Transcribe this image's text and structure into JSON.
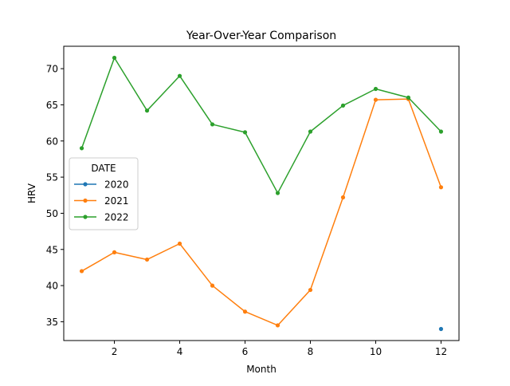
{
  "chart_data": {
    "type": "line",
    "title": "Year-Over-Year Comparison",
    "xlabel": "Month",
    "ylabel": "HRV",
    "xlim": [
      0.45,
      12.55
    ],
    "ylim": [
      32.4,
      73.1
    ],
    "xticks": [
      2,
      4,
      6,
      8,
      10,
      12
    ],
    "yticks": [
      35,
      40,
      45,
      50,
      55,
      60,
      65,
      70
    ],
    "grid": false,
    "legend": {
      "title": "DATE",
      "placement": "center-left"
    },
    "series": [
      {
        "name": "2020",
        "color": "#1f77b4",
        "x": [
          12
        ],
        "y": [
          34.0
        ]
      },
      {
        "name": "2021",
        "color": "#ff7f0e",
        "x": [
          1,
          2,
          3,
          4,
          5,
          6,
          7,
          8,
          9,
          10,
          11,
          12
        ],
        "y": [
          42.0,
          44.6,
          43.6,
          45.8,
          40.0,
          36.4,
          34.5,
          39.4,
          52.2,
          65.7,
          65.8,
          53.6
        ]
      },
      {
        "name": "2022",
        "color": "#2ca02c",
        "x": [
          1,
          2,
          3,
          4,
          5,
          6,
          7,
          8,
          9,
          10,
          11,
          12
        ],
        "y": [
          59.0,
          71.5,
          64.2,
          69.0,
          62.3,
          61.2,
          52.8,
          61.3,
          64.9,
          67.2,
          66.0,
          61.3
        ]
      }
    ]
  }
}
